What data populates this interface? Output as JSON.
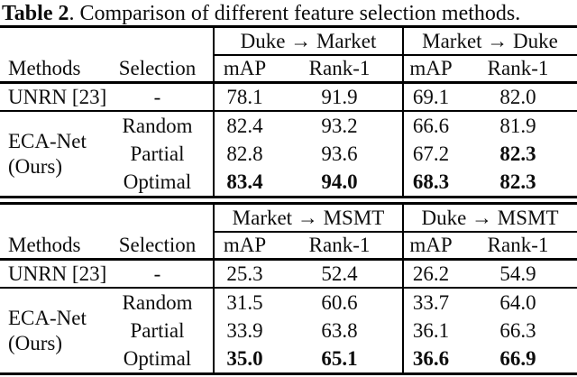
{
  "caption": {
    "label": "Table 2",
    "rest": ". Comparison of different feature selection methods."
  },
  "colors": {
    "ink": "#0d0d0d",
    "rule": "#000000",
    "background": "#ffffff"
  },
  "tables": [
    {
      "groups": [
        "Duke → Market",
        "Market → Duke"
      ],
      "headers": {
        "methods": "Methods",
        "selection": "Selection"
      },
      "metric_headers": [
        "mAP",
        "Rank-1",
        "mAP",
        "Rank-1"
      ],
      "baseline": {
        "method": "UNRN [23]",
        "selection": "-",
        "values": [
          "78.1",
          "91.9",
          "69.1",
          "82.0"
        ],
        "bold": [
          false,
          false,
          false,
          false
        ]
      },
      "ours": {
        "method_line1": "ECA-Net",
        "method_line2": "(Ours)",
        "rows": [
          {
            "selection": "Random",
            "values": [
              "82.4",
              "93.2",
              "66.6",
              "81.9"
            ],
            "bold": [
              false,
              false,
              false,
              false
            ]
          },
          {
            "selection": "Partial",
            "values": [
              "82.8",
              "93.6",
              "67.2",
              "82.3"
            ],
            "bold": [
              false,
              false,
              false,
              true
            ]
          },
          {
            "selection": "Optimal",
            "values": [
              "83.4",
              "94.0",
              "68.3",
              "82.3"
            ],
            "bold": [
              true,
              true,
              true,
              true
            ]
          }
        ]
      }
    },
    {
      "groups": [
        "Market → MSMT",
        "Duke → MSMT"
      ],
      "headers": {
        "methods": "Methods",
        "selection": "Selection"
      },
      "metric_headers": [
        "mAP",
        "Rank-1",
        "mAP",
        "Rank-1"
      ],
      "baseline": {
        "method": "UNRN [23]",
        "selection": "-",
        "values": [
          "25.3",
          "52.4",
          "26.2",
          "54.9"
        ],
        "bold": [
          false,
          false,
          false,
          false
        ]
      },
      "ours": {
        "method_line1": "ECA-Net",
        "method_line2": "(Ours)",
        "rows": [
          {
            "selection": "Random",
            "values": [
              "31.5",
              "60.6",
              "33.7",
              "64.0"
            ],
            "bold": [
              false,
              false,
              false,
              false
            ]
          },
          {
            "selection": "Partial",
            "values": [
              "33.9",
              "63.8",
              "36.1",
              "66.3"
            ],
            "bold": [
              false,
              false,
              false,
              false
            ]
          },
          {
            "selection": "Optimal",
            "values": [
              "35.0",
              "65.1",
              "36.6",
              "66.9"
            ],
            "bold": [
              true,
              true,
              true,
              true
            ]
          }
        ]
      }
    }
  ]
}
